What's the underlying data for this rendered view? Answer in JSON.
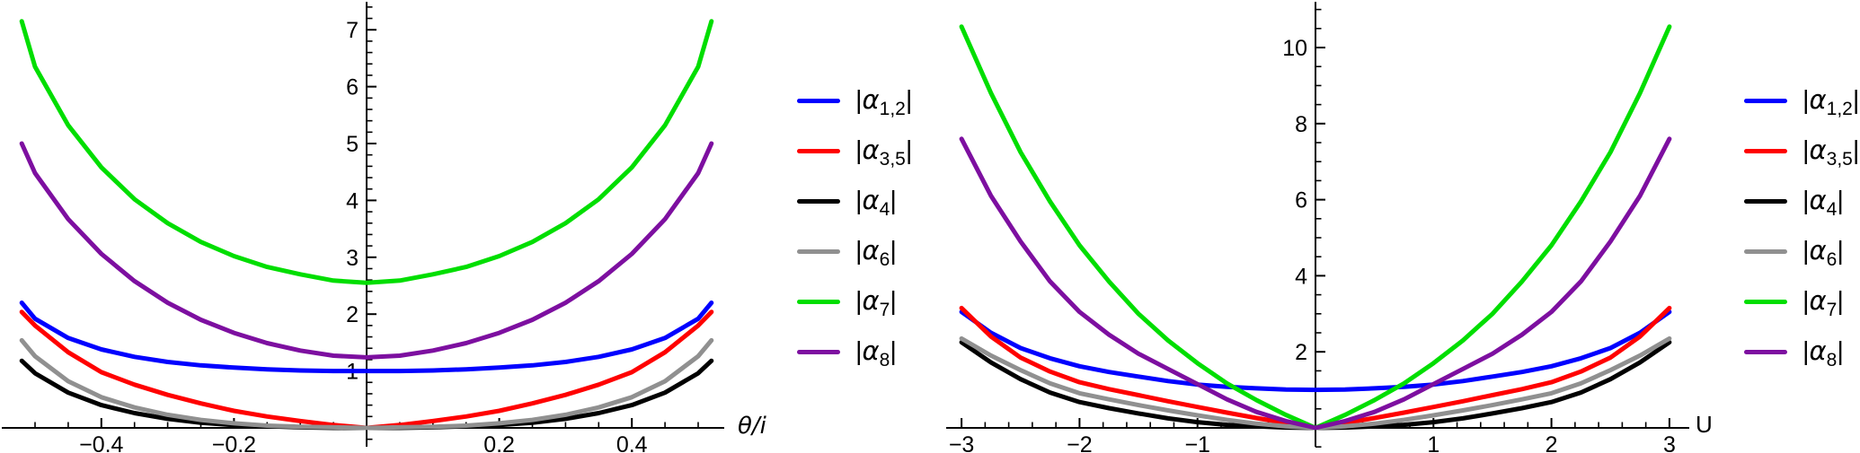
{
  "page": {
    "background": "#FFFFFF"
  },
  "chart_data": [
    {
      "type": "line",
      "title": "",
      "xlabel": "θ/i",
      "ylabel": "",
      "xlim": [
        -0.55,
        0.54
      ],
      "ylim": [
        0,
        7.5
      ],
      "grid": false,
      "legend_position": "right-of-plot",
      "xtick_values": [
        -0.4,
        -0.2,
        0.2,
        0.4
      ],
      "xtick_labels": [
        "−0.4",
        "−0.2",
        "0.2",
        "0.4"
      ],
      "ytick_values": [
        1,
        2,
        3,
        4,
        5,
        6,
        7
      ],
      "ytick_labels": [
        "1",
        "2",
        "3",
        "4",
        "5",
        "6",
        "7"
      ],
      "x_minor_step": 0.05,
      "x_minor_range": [
        -0.5,
        0.5
      ],
      "y_minor_step": 0.2,
      "y_minor_range": [
        -0.2,
        7.4
      ],
      "series": [
        {
          "name": "|α1,2|",
          "sym": "α",
          "sub": "1,2",
          "color": "#0000FF",
          "x": [
            -0.52,
            -0.5,
            -0.45,
            -0.4,
            -0.35,
            -0.3,
            -0.25,
            -0.2,
            -0.15,
            -0.1,
            -0.05,
            0,
            0.05,
            0.1,
            0.15,
            0.2,
            0.25,
            0.3,
            0.35,
            0.4,
            0.45,
            0.5,
            0.52
          ],
          "y": [
            2.2,
            1.92,
            1.58,
            1.38,
            1.25,
            1.16,
            1.1,
            1.06,
            1.03,
            1.01,
            1.0,
            1.0,
            1.0,
            1.01,
            1.03,
            1.06,
            1.1,
            1.16,
            1.25,
            1.38,
            1.58,
            1.92,
            2.2
          ]
        },
        {
          "name": "|α3,5|",
          "sym": "α",
          "sub": "3,5",
          "color": "#FF0000",
          "x": [
            -0.52,
            -0.5,
            -0.45,
            -0.4,
            -0.35,
            -0.3,
            -0.25,
            -0.2,
            -0.15,
            -0.1,
            -0.05,
            0,
            0.05,
            0.1,
            0.15,
            0.2,
            0.25,
            0.3,
            0.35,
            0.4,
            0.45,
            0.5,
            0.52
          ],
          "y": [
            2.04,
            1.8,
            1.33,
            0.98,
            0.76,
            0.58,
            0.43,
            0.3,
            0.2,
            0.12,
            0.05,
            0.0,
            0.05,
            0.12,
            0.2,
            0.3,
            0.43,
            0.58,
            0.76,
            0.98,
            1.33,
            1.8,
            2.04
          ]
        },
        {
          "name": "|α4|",
          "sym": "α",
          "sub": "4",
          "color": "#000000",
          "x": [
            -0.52,
            -0.5,
            -0.45,
            -0.4,
            -0.35,
            -0.3,
            -0.25,
            -0.2,
            -0.15,
            -0.1,
            -0.05,
            0,
            0.05,
            0.1,
            0.15,
            0.2,
            0.25,
            0.3,
            0.35,
            0.4,
            0.45,
            0.5,
            0.52
          ],
          "y": [
            1.18,
            0.96,
            0.62,
            0.4,
            0.26,
            0.16,
            0.09,
            0.05,
            0.03,
            0.01,
            0.0,
            0.0,
            0.0,
            0.01,
            0.03,
            0.05,
            0.09,
            0.16,
            0.26,
            0.4,
            0.62,
            0.96,
            1.18
          ]
        },
        {
          "name": "|α6|",
          "sym": "α",
          "sub": "6",
          "color": "#909090",
          "x": [
            -0.52,
            -0.5,
            -0.45,
            -0.4,
            -0.35,
            -0.3,
            -0.25,
            -0.2,
            -0.15,
            -0.1,
            -0.05,
            0,
            0.05,
            0.1,
            0.15,
            0.2,
            0.25,
            0.3,
            0.35,
            0.4,
            0.45,
            0.5,
            0.52
          ],
          "y": [
            1.54,
            1.26,
            0.82,
            0.54,
            0.36,
            0.23,
            0.14,
            0.08,
            0.04,
            0.02,
            0.01,
            0.0,
            0.01,
            0.02,
            0.04,
            0.08,
            0.14,
            0.23,
            0.36,
            0.54,
            0.82,
            1.26,
            1.54
          ]
        },
        {
          "name": "|α7|",
          "sym": "α",
          "sub": "7",
          "color": "#00DE00",
          "x": [
            -0.52,
            -0.5,
            -0.45,
            -0.4,
            -0.35,
            -0.3,
            -0.25,
            -0.2,
            -0.15,
            -0.1,
            -0.05,
            0,
            0.05,
            0.1,
            0.15,
            0.2,
            0.25,
            0.3,
            0.35,
            0.4,
            0.45,
            0.5,
            0.52
          ],
          "y": [
            7.15,
            6.35,
            5.32,
            4.58,
            4.02,
            3.6,
            3.27,
            3.02,
            2.83,
            2.7,
            2.59,
            2.55,
            2.59,
            2.7,
            2.83,
            3.02,
            3.27,
            3.6,
            4.02,
            4.58,
            5.32,
            6.35,
            7.15
          ]
        },
        {
          "name": "|α8|",
          "sym": "α",
          "sub": "8",
          "color": "#7D0FA0",
          "x": [
            -0.52,
            -0.5,
            -0.45,
            -0.4,
            -0.35,
            -0.3,
            -0.25,
            -0.2,
            -0.15,
            -0.1,
            -0.05,
            0,
            0.05,
            0.1,
            0.15,
            0.2,
            0.25,
            0.3,
            0.35,
            0.4,
            0.45,
            0.5,
            0.52
          ],
          "y": [
            5.0,
            4.48,
            3.67,
            3.06,
            2.58,
            2.2,
            1.9,
            1.67,
            1.49,
            1.36,
            1.27,
            1.24,
            1.27,
            1.36,
            1.49,
            1.67,
            1.9,
            2.2,
            2.58,
            3.06,
            3.67,
            4.48,
            5.0
          ]
        }
      ]
    },
    {
      "type": "line",
      "title": "",
      "xlabel": "U",
      "ylabel": "",
      "xlim": [
        -3.1,
        3.15
      ],
      "ylim": [
        0,
        11.2
      ],
      "grid": false,
      "legend_position": "right-of-plot",
      "xtick_values": [
        -3,
        -2,
        -1,
        1,
        2,
        3
      ],
      "xtick_labels": [
        "−3",
        "−2",
        "−1",
        "1",
        "2",
        "3"
      ],
      "ytick_values": [
        2,
        4,
        6,
        8,
        10
      ],
      "ytick_labels": [
        "2",
        "4",
        "6",
        "8",
        "10"
      ],
      "x_minor_step": 0.2,
      "x_minor_range": [
        -3,
        3
      ],
      "y_minor_step": 0.5,
      "y_minor_range": [
        -0.5,
        11.0
      ],
      "series": [
        {
          "name": "|α1,2|",
          "sym": "α",
          "sub": "1,2",
          "color": "#0000FF",
          "x": [
            -3,
            -2.75,
            -2.5,
            -2.25,
            -2,
            -1.75,
            -1.5,
            -1.25,
            -1,
            -0.75,
            -0.5,
            -0.25,
            0,
            0.25,
            0.5,
            0.75,
            1,
            1.25,
            1.5,
            1.75,
            2,
            2.25,
            2.5,
            2.75,
            3
          ],
          "y": [
            3.05,
            2.5,
            2.1,
            1.83,
            1.62,
            1.47,
            1.35,
            1.23,
            1.14,
            1.08,
            1.04,
            1.01,
            1.0,
            1.01,
            1.04,
            1.08,
            1.14,
            1.23,
            1.35,
            1.47,
            1.62,
            1.83,
            2.1,
            2.5,
            3.05
          ]
        },
        {
          "name": "|α3,5|",
          "sym": "α",
          "sub": "3,5",
          "color": "#FF0000",
          "x": [
            -3,
            -2.75,
            -2.5,
            -2.25,
            -2,
            -1.75,
            -1.5,
            -1.25,
            -1,
            -0.75,
            -0.5,
            -0.25,
            0,
            0.25,
            0.5,
            0.75,
            1,
            1.25,
            1.5,
            1.75,
            2,
            2.25,
            2.5,
            2.75,
            3
          ],
          "y": [
            3.15,
            2.4,
            1.85,
            1.48,
            1.2,
            1.02,
            0.86,
            0.7,
            0.55,
            0.4,
            0.26,
            0.13,
            0.0,
            0.13,
            0.26,
            0.4,
            0.55,
            0.7,
            0.86,
            1.02,
            1.2,
            1.48,
            1.85,
            2.4,
            3.15
          ]
        },
        {
          "name": "|α4|",
          "sym": "α",
          "sub": "4",
          "color": "#000000",
          "x": [
            -3,
            -2.75,
            -2.5,
            -2.25,
            -2,
            -1.75,
            -1.5,
            -1.25,
            -1,
            -0.75,
            -0.5,
            -0.25,
            0,
            0.25,
            0.5,
            0.75,
            1,
            1.25,
            1.5,
            1.75,
            2,
            2.25,
            2.5,
            2.75,
            3
          ],
          "y": [
            2.25,
            1.72,
            1.28,
            0.93,
            0.68,
            0.52,
            0.38,
            0.25,
            0.15,
            0.08,
            0.04,
            0.01,
            0.0,
            0.01,
            0.04,
            0.08,
            0.15,
            0.25,
            0.38,
            0.52,
            0.68,
            0.93,
            1.28,
            1.72,
            2.25
          ]
        },
        {
          "name": "|α6|",
          "sym": "α",
          "sub": "6",
          "color": "#909090",
          "x": [
            -3,
            -2.75,
            -2.5,
            -2.25,
            -2,
            -1.75,
            -1.5,
            -1.25,
            -1,
            -0.75,
            -0.5,
            -0.25,
            0,
            0.25,
            0.5,
            0.75,
            1,
            1.25,
            1.5,
            1.75,
            2,
            2.25,
            2.5,
            2.75,
            3
          ],
          "y": [
            2.35,
            1.9,
            1.52,
            1.17,
            0.91,
            0.75,
            0.6,
            0.46,
            0.33,
            0.21,
            0.11,
            0.04,
            0.0,
            0.04,
            0.11,
            0.21,
            0.33,
            0.46,
            0.6,
            0.75,
            0.91,
            1.17,
            1.52,
            1.9,
            2.35
          ]
        },
        {
          "name": "|α7|",
          "sym": "α",
          "sub": "7",
          "color": "#00DE00",
          "x": [
            -3,
            -2.75,
            -2.5,
            -2.25,
            -2,
            -1.75,
            -1.5,
            -1.25,
            -1,
            -0.75,
            -0.5,
            -0.25,
            0,
            0.25,
            0.5,
            0.75,
            1,
            1.25,
            1.5,
            1.75,
            2,
            2.25,
            2.5,
            2.75,
            3
          ],
          "y": [
            10.55,
            8.8,
            7.25,
            5.95,
            4.8,
            3.85,
            3.0,
            2.3,
            1.7,
            1.17,
            0.73,
            0.34,
            0.0,
            0.34,
            0.73,
            1.17,
            1.7,
            2.3,
            3.0,
            3.85,
            4.8,
            5.95,
            7.25,
            8.8,
            10.55
          ]
        },
        {
          "name": "|α8|",
          "sym": "α",
          "sub": "8",
          "color": "#7D0FA0",
          "x": [
            -3,
            -2.75,
            -2.5,
            -2.25,
            -2,
            -1.75,
            -1.5,
            -1.25,
            -1,
            -0.75,
            -0.5,
            -0.25,
            0,
            0.25,
            0.5,
            0.75,
            1,
            1.25,
            1.5,
            1.75,
            2,
            2.25,
            2.5,
            2.75,
            3
          ],
          "y": [
            7.6,
            6.1,
            4.9,
            3.85,
            3.05,
            2.45,
            1.95,
            1.55,
            1.15,
            0.75,
            0.42,
            0.18,
            0.0,
            0.18,
            0.42,
            0.75,
            1.15,
            1.55,
            1.95,
            2.45,
            3.05,
            3.85,
            4.9,
            6.1,
            7.6
          ]
        }
      ]
    }
  ]
}
